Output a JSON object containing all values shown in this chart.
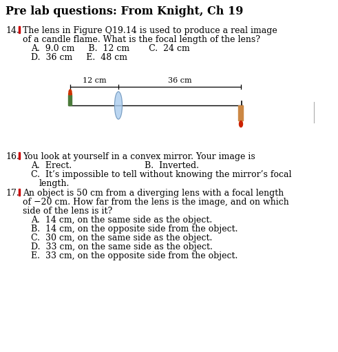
{
  "title": "Pre lab questions: From Knight, Ch 19",
  "title_fontsize": 11.5,
  "background_color": "#ffffff",
  "text_color": "#000000",
  "body_fontsize": 9.0,
  "small_fontsize": 8.5,
  "dot_color": "#cc0000",
  "label_12cm": "12 cm",
  "label_36cm": "36 cm",
  "candle_green": "#4a7a3a",
  "candle_flame": "#cc3300",
  "lens_color_fill": "#aaccee",
  "lens_color_edge": "#7799bb",
  "image_candle_color": "#cc8844",
  "image_flame_color": "#cc2200",
  "line_color": "#000000",
  "vertical_line_color": "#888888",
  "q14_lines": [
    "14. ▮  The lens in Figure Q19.14 is used to produce a real image",
    "    of a candle flame. What is the focal length of the lens?",
    "    A.  9.0 cm     B.  12 cm       C.  24 cm",
    "    D.  36 cm     E.  48 cm"
  ],
  "q16_lines": [
    "16. ▮  You look at yourself in a convex mirror. Your image is",
    "    A.  Erect.                      B.  Inverted.",
    "    C.  It’s impossible to tell without knowing the mirror’s focal",
    "        length."
  ],
  "q17_lines": [
    "17. ▮  An object is 50 cm from a diverging lens with a focal length",
    "    of −20 cm. How far from the lens is the image, and on which",
    "    side of the lens is it?",
    "    A.  14 cm, on the same side as the object.",
    "    B.  14 cm, on the opposite side from the object.",
    "    C.  30 cm, on the same side as the object.",
    "    D.  33 cm, on the same side as the object.",
    "    E.  33 cm, on the opposite side from the object."
  ]
}
